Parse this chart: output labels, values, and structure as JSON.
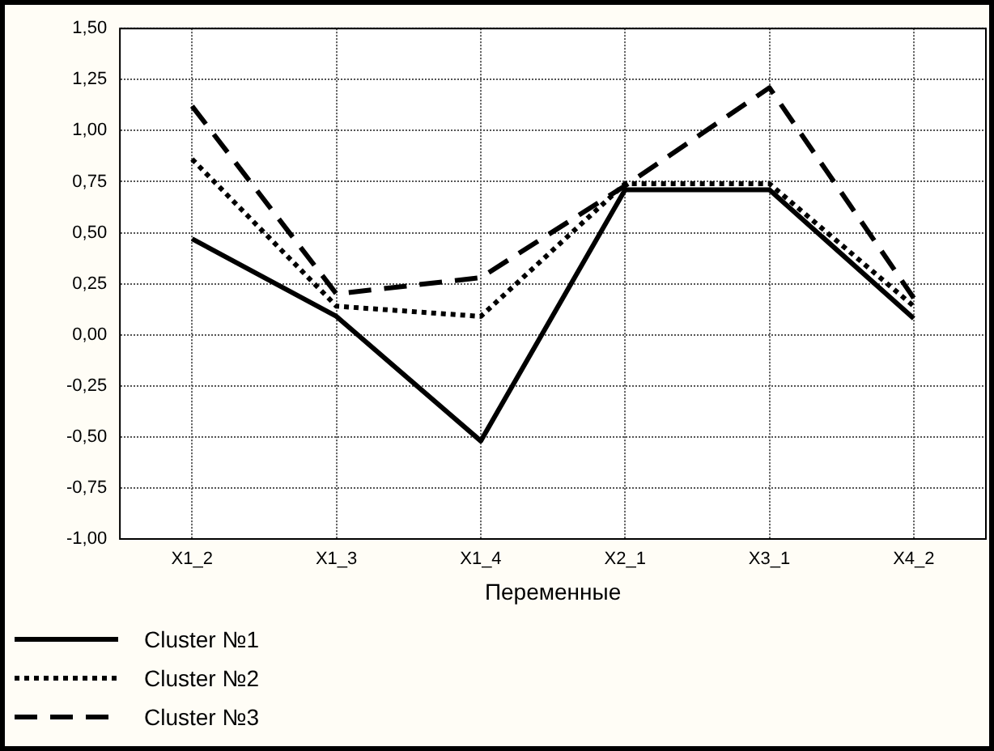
{
  "chart_data": {
    "type": "line",
    "xlabel": "Переменные",
    "categories": [
      "X1_2",
      "X1_3",
      "X1_4",
      "X2_1",
      "X3_1",
      "X4_2"
    ],
    "series": [
      {
        "name": "Cluster №1",
        "color": "#000000",
        "line_style": "solid",
        "values": [
          0.47,
          0.09,
          -0.52,
          0.71,
          0.71,
          0.08
        ]
      },
      {
        "name": "Cluster №2",
        "color": "#000000",
        "line_style": "dotted",
        "values": [
          0.86,
          0.14,
          0.09,
          0.74,
          0.74,
          0.14
        ]
      },
      {
        "name": "Cluster №3",
        "color": "#000000",
        "line_style": "dashed",
        "values": [
          1.12,
          0.2,
          0.28,
          0.73,
          1.21,
          0.18
        ]
      }
    ],
    "ylim": [
      -1,
      1.5
    ],
    "yticks": [
      {
        "value": -1,
        "label": "-1,00"
      },
      {
        "value": -0.75,
        "label": "-0,75"
      },
      {
        "value": -0.5,
        "label": "-0,50"
      },
      {
        "value": -0.25,
        "label": "-0,25"
      },
      {
        "value": 0,
        "label": "0,00"
      },
      {
        "value": 0.25,
        "label": "0,25"
      },
      {
        "value": 0.5,
        "label": "0,50"
      },
      {
        "value": 0.75,
        "label": "0,75"
      },
      {
        "value": 1,
        "label": "1,00"
      },
      {
        "value": 1.25,
        "label": "1,25"
      },
      {
        "value": 1.5,
        "label": "1,50"
      }
    ],
    "grid": true,
    "legend": "bottom left",
    "marker": "none"
  }
}
